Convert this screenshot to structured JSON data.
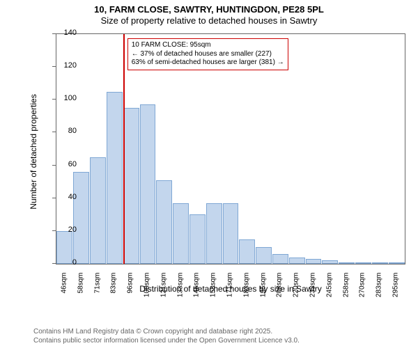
{
  "title_line1": "10, FARM CLOSE, SAWTRY, HUNTINGDON, PE28 5PL",
  "title_line2": "Size of property relative to detached houses in Sawtry",
  "ylabel": "Number of detached properties",
  "xlabel": "Distribution of detached houses by size in Sawtry",
  "footer_line1": "Contains HM Land Registry data © Crown copyright and database right 2025.",
  "footer_line2": "Contains public sector information licensed under the Open Government Licence v3.0.",
  "chart": {
    "type": "histogram",
    "ylim": [
      0,
      140
    ],
    "yticks": [
      0,
      20,
      40,
      60,
      80,
      100,
      120,
      140
    ],
    "xtick_labels": [
      "46sqm",
      "58sqm",
      "71sqm",
      "83sqm",
      "96sqm",
      "108sqm",
      "121sqm",
      "133sqm",
      "146sqm",
      "158sqm",
      "171sqm",
      "183sqm",
      "195sqm",
      "208sqm",
      "220sqm",
      "233sqm",
      "245sqm",
      "258sqm",
      "270sqm",
      "283sqm",
      "295sqm"
    ],
    "bar_values": [
      20,
      56,
      65,
      105,
      95,
      97,
      51,
      37,
      30,
      37,
      37,
      15,
      10,
      6,
      4,
      3,
      2,
      1,
      0,
      1,
      1
    ],
    "bar_fill": "#c3d6ed",
    "bar_stroke": "#7fa7d4",
    "bar_width": 0.96,
    "background_color": "#ffffff",
    "axis_color": "#666666",
    "marker": {
      "x_index": 4,
      "color": "#cc0000",
      "label_lines": [
        "10 FARM CLOSE: 95sqm",
        "← 37% of detached houses are smaller (227)",
        "63% of semi-detached houses are larger (381) →"
      ]
    }
  }
}
